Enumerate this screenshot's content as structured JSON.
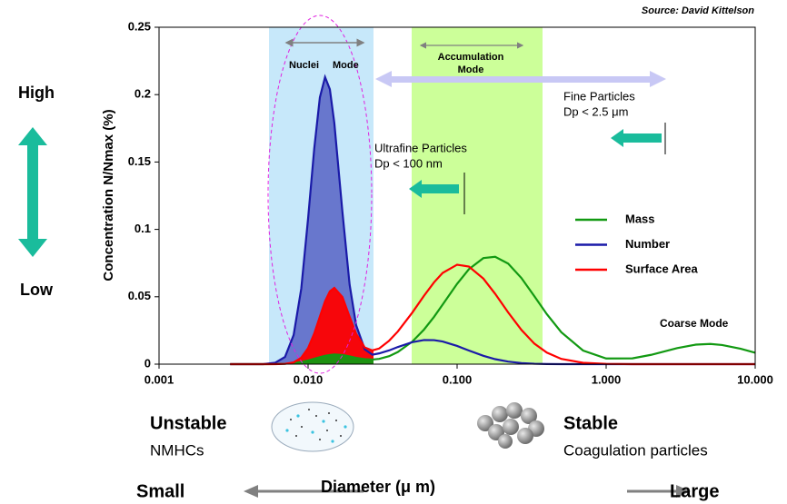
{
  "chart_data": {
    "type": "line",
    "source": "Source: David Kittelson",
    "y_label": "Concentration N/Nmax (%)",
    "x_label": "Diameter (μ m)",
    "log_x": true,
    "xlim": [
      0.001,
      10
    ],
    "xticks": [
      0.001,
      {
        "value": 0.01,
        "label": "0.010"
      },
      {
        "value": 0.1,
        "label": "0.100"
      },
      {
        "value": 1,
        "label": "1.000"
      },
      {
        "value": 10,
        "label": "10.000"
      }
    ],
    "ylim": [
      0,
      0.25
    ],
    "yticks": [
      0,
      0.05,
      0.1,
      0.15,
      0.2,
      0.25
    ],
    "x": [
      0.003,
      0.004,
      0.005,
      0.006,
      0.007,
      0.008,
      0.009,
      0.01,
      0.011,
      0.012,
      0.013,
      0.014,
      0.015,
      0.017,
      0.019,
      0.021,
      0.024,
      0.027,
      0.03,
      0.035,
      0.04,
      0.05,
      0.06,
      0.07,
      0.08,
      0.1,
      0.12,
      0.15,
      0.18,
      0.22,
      0.27,
      0.33,
      0.4,
      0.5,
      0.7,
      1.0,
      1.5,
      2,
      3,
      4,
      5,
      6,
      8,
      10
    ],
    "series": [
      {
        "name": "Mass",
        "color": "#129912",
        "values": [
          0,
          0,
          0,
          0.0001,
          0.0003,
          0.0007,
          0.0016,
          0.0027,
          0.004,
          0.0052,
          0.0062,
          0.0068,
          0.0072,
          0.0068,
          0.0058,
          0.0047,
          0.0037,
          0.0034,
          0.0039,
          0.0059,
          0.009,
          0.0167,
          0.0257,
          0.0351,
          0.0442,
          0.0596,
          0.0705,
          0.0787,
          0.0797,
          0.0746,
          0.0639,
          0.0504,
          0.0371,
          0.0237,
          0.0101,
          0.0042,
          0.0043,
          0.0069,
          0.0119,
          0.0145,
          0.015,
          0.0142,
          0.0114,
          0.0085
        ]
      },
      {
        "name": "Number",
        "color": "#1a1aa8",
        "values": [
          0,
          0,
          0,
          0.001,
          0.0053,
          0.0216,
          0.056,
          0.108,
          0.16,
          0.198,
          0.213,
          0.204,
          0.179,
          0.113,
          0.059,
          0.029,
          0.011,
          0.007,
          0.008,
          0.0102,
          0.0127,
          0.0163,
          0.0179,
          0.0178,
          0.0168,
          0.0135,
          0.0101,
          0.0062,
          0.0037,
          0.0019,
          0.0008,
          0.0003,
          0.0001,
          0,
          0,
          0,
          0,
          0,
          0,
          0,
          0,
          0,
          0,
          0
        ]
      },
      {
        "name": "Surface Area",
        "color": "#ff0000",
        "values": [
          0,
          0,
          0,
          0,
          0.0002,
          0.0013,
          0.0048,
          0.0119,
          0.0227,
          0.0353,
          0.0466,
          0.054,
          0.0566,
          0.0498,
          0.0351,
          0.0226,
          0.0124,
          0.0102,
          0.0116,
          0.0174,
          0.0242,
          0.0382,
          0.0508,
          0.0607,
          0.0677,
          0.0738,
          0.0724,
          0.0635,
          0.0522,
          0.0384,
          0.0254,
          0.0152,
          0.0086,
          0.0039,
          0.001,
          0.0002,
          0,
          0,
          0,
          0,
          0,
          0,
          0,
          0
        ]
      }
    ],
    "annotations": {
      "nuclei": "Nuclei",
      "nuclei_mode": "Mode",
      "accumulation": "Accumulation",
      "accumulation_mode": "Mode",
      "fine": "Fine Particles",
      "fine_dp": "Dp < 2.5 μm",
      "ultrafine": "Ultrafine Particles",
      "ultrafine_dp": "Dp < 100 nm",
      "coarse": "Coarse Mode",
      "high": "High",
      "low": "Low",
      "unstable": "Unstable",
      "nmhcs": "NMHCs",
      "stable": "Stable",
      "coagulation": "Coagulation particles",
      "small": "Small",
      "large": "Large"
    }
  }
}
